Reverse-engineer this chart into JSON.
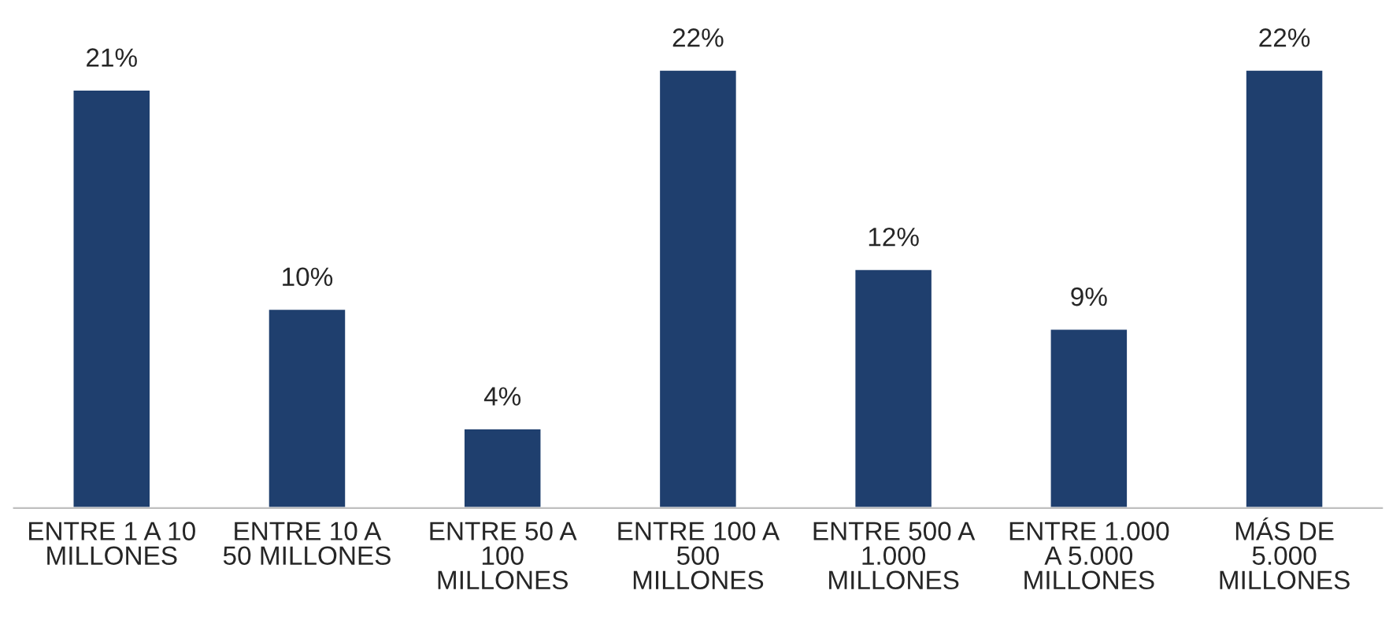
{
  "chart_data": {
    "type": "bar",
    "categories": [
      "ENTRE 1 A 10\nMILLONES",
      "ENTRE 10 A\n50 MILLONES",
      "ENTRE 50 A\n100\nMILLONES",
      "ENTRE 100 A\n500\nMILLONES",
      "ENTRE 500 A\n1.000\nMILLONES",
      "ENTRE 1.000\nA 5.000\nMILLONES",
      "MÁS DE\n5.000\nMILLONES"
    ],
    "values": [
      21,
      10,
      4,
      22,
      12,
      9,
      22
    ],
    "value_labels": [
      "21%",
      "10%",
      "4%",
      "22%",
      "12%",
      "9%",
      "22%"
    ],
    "color": "#1f3f6e",
    "grid": false,
    "legend": false
  }
}
